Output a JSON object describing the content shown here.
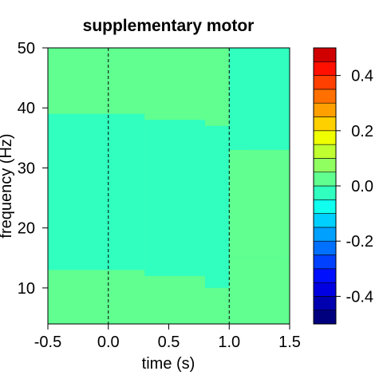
{
  "chart_data": {
    "type": "heatmap",
    "title": "supplementary motor",
    "xlabel": "time (s)",
    "ylabel": "frequency (Hz)",
    "x_range": [
      -0.5,
      1.5
    ],
    "y_range": [
      4,
      50
    ],
    "x_ticks": [
      {
        "value": -0.5,
        "label": "-0.5"
      },
      {
        "value": 0.0,
        "label": "0.0"
      },
      {
        "value": 0.5,
        "label": "0.5"
      },
      {
        "value": 1.0,
        "label": "1.0"
      },
      {
        "value": 1.5,
        "label": "1.5"
      }
    ],
    "y_ticks": [
      {
        "value": 10,
        "label": "10"
      },
      {
        "value": 20,
        "label": "20"
      },
      {
        "value": 30,
        "label": "30"
      },
      {
        "value": 40,
        "label": "40"
      },
      {
        "value": 50,
        "label": "50"
      }
    ],
    "reference_lines_x": [
      0.0,
      1.0
    ],
    "colorbar": {
      "range": [
        -0.5,
        0.5
      ],
      "levels": 20,
      "colors": [
        "#00007f",
        "#0000b0",
        "#0000e0",
        "#0010ff",
        "#0040ff",
        "#0070ff",
        "#00a0ff",
        "#00d0ff",
        "#10ffee",
        "#30ffc0",
        "#60ff90",
        "#90ff60",
        "#c0ff30",
        "#f0ff00",
        "#ffd000",
        "#ffa000",
        "#ff7000",
        "#ff4000",
        "#ff1000",
        "#d00000"
      ],
      "ticks": [
        {
          "value": 0.4,
          "label": "0.4"
        },
        {
          "value": 0.2,
          "label": "0.2"
        },
        {
          "value": 0.0,
          "label": "0.0"
        },
        {
          "value": -0.2,
          "label": "-0.2"
        },
        {
          "value": -0.4,
          "label": "-0.4"
        }
      ]
    },
    "regions": [
      {
        "t0": -0.5,
        "t1": 1.5,
        "f0": 4,
        "f1": 50,
        "value": 0.04
      },
      {
        "t0": -0.5,
        "t1": 0.3,
        "f0": 13,
        "f1": 39,
        "value": -0.02
      },
      {
        "t0": 0.3,
        "t1": 0.8,
        "f0": 12,
        "f1": 38,
        "value": -0.02
      },
      {
        "t0": 0.8,
        "t1": 1.0,
        "f0": 10,
        "f1": 37,
        "value": -0.02
      },
      {
        "t0": 1.0,
        "t1": 1.5,
        "f0": 15,
        "f1": 50,
        "value": -0.02
      },
      {
        "t0": 1.0,
        "t1": 1.5,
        "f0": 15,
        "f1": 33,
        "value": 0.04
      },
      {
        "t0": 1.15,
        "t1": 1.5,
        "f0": 20,
        "f1": 33,
        "value": 0.04
      }
    ]
  }
}
